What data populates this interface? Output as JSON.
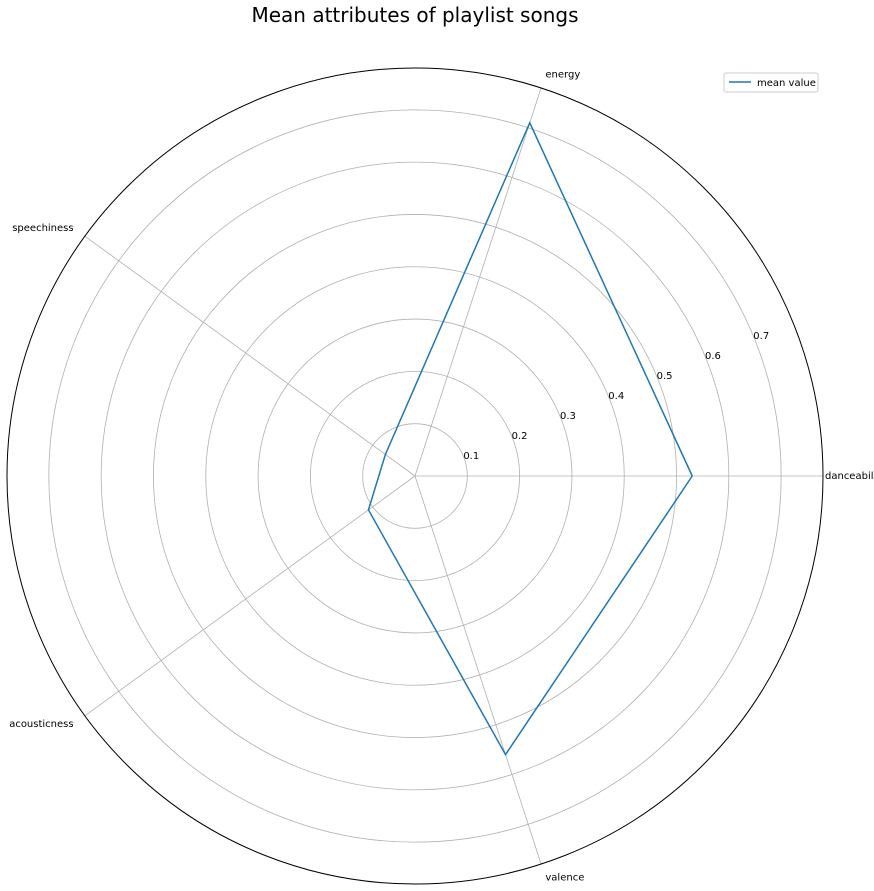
{
  "chart_data": {
    "type": "radar",
    "title": "Mean attributes of playlist songs",
    "categories": [
      "danceability",
      "energy",
      "speechiness",
      "acousticness",
      "valence"
    ],
    "series": [
      {
        "name": "mean value",
        "color": "#1f77b4",
        "values": [
          0.53,
          0.71,
          0.07,
          0.11,
          0.56
        ]
      }
    ],
    "radial_ticks": [
      0.1,
      0.2,
      0.3,
      0.4,
      0.5,
      0.6,
      0.7
    ],
    "radial_tick_labels": [
      "0.1",
      "0.2",
      "0.3",
      "0.4",
      "0.5",
      "0.6",
      "0.7"
    ],
    "rlim": [
      0,
      0.78
    ],
    "grid": true,
    "legend_position": "top-right",
    "colors": {
      "series": "#1f77b4",
      "grid": "#b0b0b0",
      "frame": "#000000"
    }
  }
}
